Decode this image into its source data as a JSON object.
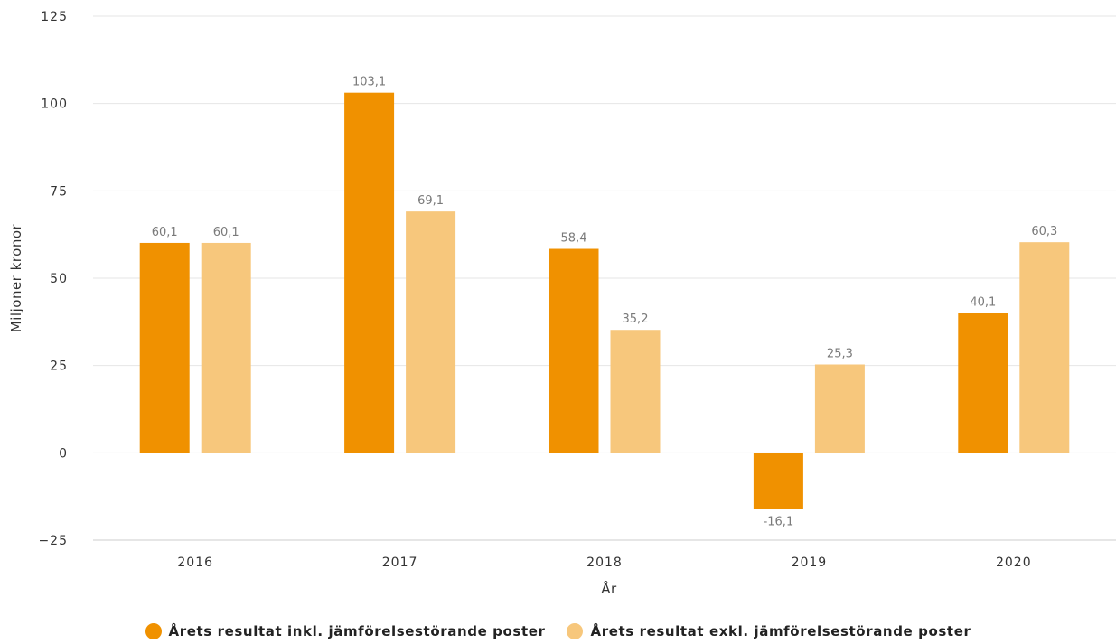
{
  "chart_data": {
    "type": "bar",
    "categories": [
      "2016",
      "2017",
      "2018",
      "2019",
      "2020"
    ],
    "series": [
      {
        "name": "Årets resultat inkl. jämförelsestörande poster",
        "color": "#f09100",
        "values": [
          60.1,
          103.1,
          58.4,
          -16.1,
          40.1
        ],
        "labels": [
          "60,1",
          "103,1",
          "58,4",
          "-16,1",
          "40,1"
        ]
      },
      {
        "name": "Årets resultat exkl. jämförelsestörande poster",
        "color": "#f7c77c",
        "values": [
          60.1,
          69.1,
          35.2,
          25.3,
          60.3
        ],
        "labels": [
          "60,1",
          "69,1",
          "35,2",
          "25,3",
          "60,3"
        ]
      }
    ],
    "xlabel": "År",
    "ylabel": "Miljoner kronor",
    "ylim": [
      -25,
      125
    ],
    "yticks": [
      -25,
      0,
      25,
      50,
      75,
      100,
      125
    ],
    "ytick_labels": [
      "−25",
      "0",
      "25",
      "50",
      "75",
      "100",
      "125"
    ],
    "grid": true,
    "legend_position": "bottom-center"
  }
}
